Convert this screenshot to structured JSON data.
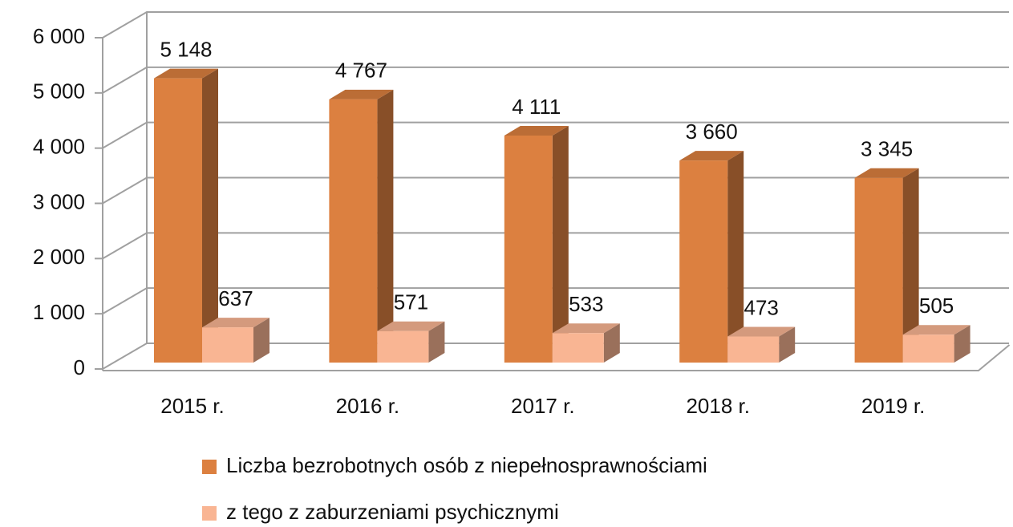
{
  "chart_data": {
    "type": "bar3d",
    "categories": [
      "2015 r.",
      "2016 r.",
      "2017 r.",
      "2018 r.",
      "2019 r."
    ],
    "series": [
      {
        "name": "Liczba bezrobotnych osób z niepełnosprawnościami",
        "color": "#dc8040",
        "values": [
          5148,
          4767,
          4111,
          3660,
          3345
        ],
        "value_labels": [
          "5 148",
          "4 767",
          "4 111",
          "3 660",
          "3 345"
        ]
      },
      {
        "name": "z tego z zaburzeniami psychicznymi",
        "color": "#f9b593",
        "values": [
          637,
          571,
          533,
          473,
          505
        ],
        "value_labels": [
          "637",
          "571",
          "533",
          "473",
          "505"
        ]
      }
    ],
    "ylim": [
      0,
      6000
    ],
    "yticks": [
      {
        "value": 0,
        "label": "0"
      },
      {
        "value": 1000,
        "label": "1 000"
      },
      {
        "value": 2000,
        "label": "2 000"
      },
      {
        "value": 3000,
        "label": "3 000"
      },
      {
        "value": 4000,
        "label": "4 000"
      },
      {
        "value": 5000,
        "label": "5 000"
      },
      {
        "value": 6000,
        "label": "6 000"
      }
    ],
    "grid": true,
    "legend": "bottom"
  }
}
